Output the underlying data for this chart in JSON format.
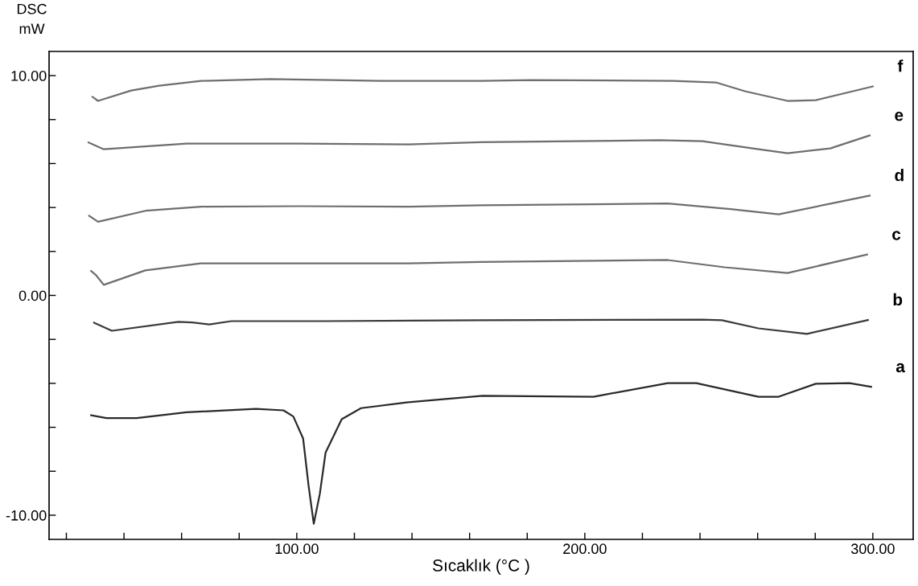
{
  "chart_data": {
    "type": "line",
    "xlabel": "Sıcaklık (°C )",
    "ylabel": "DSC\nmW",
    "xlim": [
      14,
      314
    ],
    "ylim": [
      -11.1,
      11.1
    ],
    "xticks": [
      {
        "value": 20,
        "label": null
      },
      {
        "value": 40,
        "label": null
      },
      {
        "value": 60,
        "label": null
      },
      {
        "value": 80,
        "label": null
      },
      {
        "value": 100,
        "label": "100.00"
      },
      {
        "value": 120,
        "label": null
      },
      {
        "value": 140,
        "label": null
      },
      {
        "value": 160,
        "label": null
      },
      {
        "value": 180,
        "label": null
      },
      {
        "value": 200,
        "label": "200.00"
      },
      {
        "value": 220,
        "label": null
      },
      {
        "value": 240,
        "label": null
      },
      {
        "value": 260,
        "label": null
      },
      {
        "value": 280,
        "label": null
      },
      {
        "value": 300,
        "label": "300.00"
      }
    ],
    "yticks": [
      {
        "value": -10,
        "label": "-10.00"
      },
      {
        "value": -8,
        "label": null
      },
      {
        "value": -6,
        "label": null
      },
      {
        "value": -4,
        "label": null
      },
      {
        "value": -2,
        "label": null
      },
      {
        "value": 0,
        "label": "0.00"
      },
      {
        "value": 2,
        "label": null
      },
      {
        "value": 4,
        "label": null
      },
      {
        "value": 6,
        "label": null
      },
      {
        "value": 8,
        "label": null
      },
      {
        "value": 10,
        "label": "10.00"
      }
    ],
    "grid": false,
    "legend": false,
    "marker": "none",
    "line_style": "solid",
    "series": [
      {
        "name": "f",
        "color": "#6e6e6e",
        "x": [
          29.1,
          31.0,
          42.5,
          52.2,
          66.8,
          90.8,
          129.3,
          164.0,
          181.6,
          230.7,
          245.5,
          255.6,
          270.4,
          280.2,
          300.0
        ],
        "values": [
          9.03,
          8.85,
          9.32,
          9.54,
          9.76,
          9.84,
          9.76,
          9.76,
          9.8,
          9.76,
          9.69,
          9.29,
          8.85,
          8.88,
          9.51
        ]
      },
      {
        "name": "e",
        "color": "#6e6e6e",
        "x": [
          27.7,
          33.0,
          61.7,
          100.3,
          138.8,
          164.0,
          226.0,
          240.8,
          260.3,
          270.4,
          285.2,
          298.9
        ],
        "values": [
          6.96,
          6.65,
          6.91,
          6.91,
          6.87,
          6.97,
          7.06,
          7.02,
          6.65,
          6.47,
          6.69,
          7.28
        ]
      },
      {
        "name": "d",
        "color": "#6e6e6e",
        "x": [
          27.9,
          31.0,
          47.5,
          66.8,
          100.3,
          138.8,
          164.0,
          228.8,
          250.6,
          267.3,
          298.9
        ],
        "values": [
          3.62,
          3.35,
          3.85,
          4.04,
          4.06,
          4.04,
          4.1,
          4.18,
          3.93,
          3.69,
          4.54
        ]
      },
      {
        "name": "c",
        "color": "#6e6e6e",
        "x": [
          28.6,
          30.1,
          33.0,
          47.4,
          66.7,
          100.3,
          138.8,
          164.0,
          228.8,
          248.6,
          270.4,
          298.0
        ],
        "values": [
          1.11,
          0.95,
          0.48,
          1.14,
          1.46,
          1.46,
          1.46,
          1.52,
          1.61,
          1.28,
          1.02,
          1.86
        ]
      },
      {
        "name": "b",
        "color": "#3a3a3a",
        "x": [
          29.6,
          35.8,
          58.9,
          63.7,
          69.6,
          77.3,
          110.0,
          164.0,
          240.8,
          247.6,
          260.3,
          277.1,
          298.3
        ],
        "values": [
          -1.24,
          -1.61,
          -1.2,
          -1.23,
          -1.32,
          -1.17,
          -1.17,
          -1.13,
          -1.1,
          -1.13,
          -1.5,
          -1.75,
          -1.12
        ]
      },
      {
        "name": "a",
        "color": "#2a2a2a",
        "x": [
          28.6,
          33.9,
          44.4,
          61.7,
          85.8,
          95.4,
          98.8,
          102.2,
          104.1,
          105.9,
          108.0,
          110.0,
          115.6,
          122.3,
          138.7,
          164.5,
          203.0,
          228.8,
          238.7,
          260.3,
          267.3,
          280.2,
          291.9,
          299.4
        ],
        "values": [
          -5.45,
          -5.58,
          -5.58,
          -5.32,
          -5.16,
          -5.23,
          -5.51,
          -6.51,
          -8.66,
          -10.39,
          -9.03,
          -7.15,
          -5.63,
          -5.13,
          -4.86,
          -4.57,
          -4.61,
          -3.99,
          -3.99,
          -4.61,
          -4.61,
          -4.02,
          -3.99,
          -4.16
        ]
      }
    ]
  }
}
